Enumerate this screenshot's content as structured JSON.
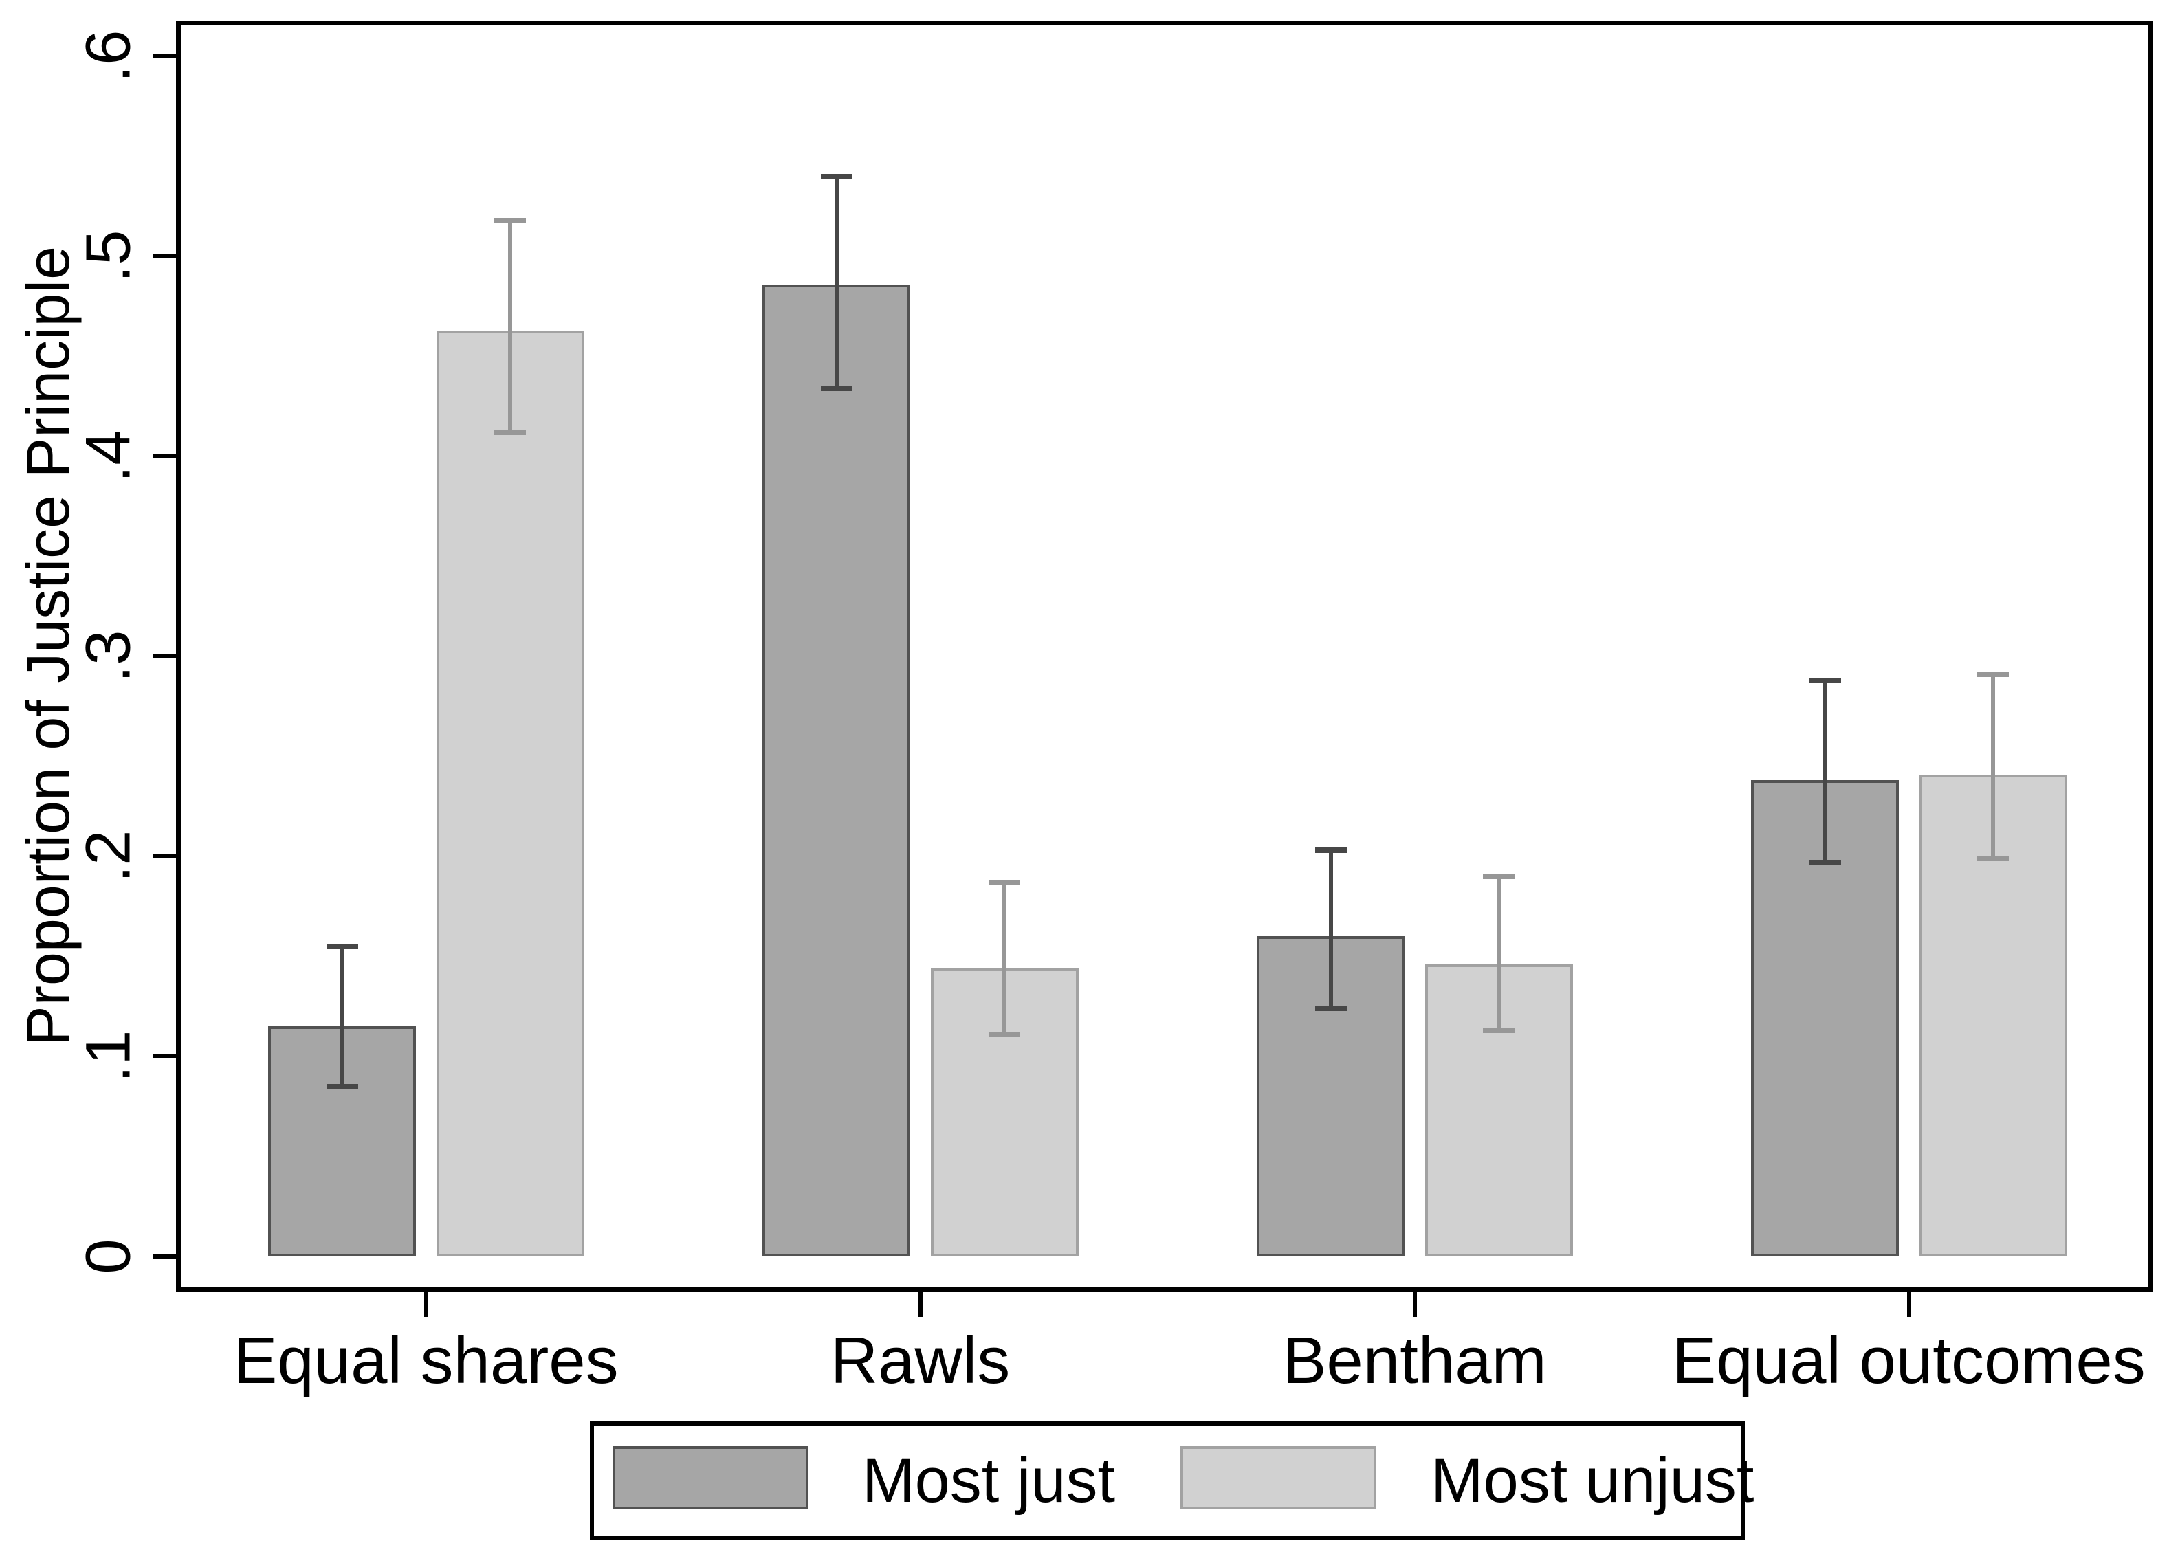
{
  "chart_data": {
    "type": "bar",
    "title": "",
    "ylabel": "Proportion of Justice Principle",
    "xlabel": "",
    "categories": [
      "Equal shares",
      "Rawls",
      "Bentham",
      "Equal outcomes"
    ],
    "series": [
      {
        "name": "Most just",
        "values": [
          0.115,
          0.486,
          0.16,
          0.238
        ],
        "ci_low": [
          0.085,
          0.434,
          0.124,
          0.197
        ],
        "ci_high": [
          0.155,
          0.54,
          0.203,
          0.288
        ],
        "fill": "#a6a6a6",
        "border": "#525252",
        "error_color": "#474747"
      },
      {
        "name": "Most unjust",
        "values": [
          0.463,
          0.144,
          0.146,
          0.241
        ],
        "ci_low": [
          0.412,
          0.111,
          0.113,
          0.199
        ],
        "ci_high": [
          0.518,
          0.187,
          0.19,
          0.291
        ],
        "fill": "#d1d1d1",
        "border": "#a2a2a2",
        "error_color": "#979797"
      }
    ],
    "yticks": {
      "values": [
        0,
        0.1,
        0.2,
        0.3,
        0.4,
        0.5,
        0.6
      ],
      "labels": [
        "0",
        ".1",
        ".2",
        ".3",
        ".4",
        ".5",
        ".6"
      ]
    },
    "ylim": [
      0,
      0.6
    ],
    "grid": false,
    "error_bars": true,
    "legend": {
      "position": "bottom",
      "entries": [
        "Most just",
        "Most unjust"
      ]
    },
    "axis_color": "#000000",
    "background": "#ffffff"
  }
}
